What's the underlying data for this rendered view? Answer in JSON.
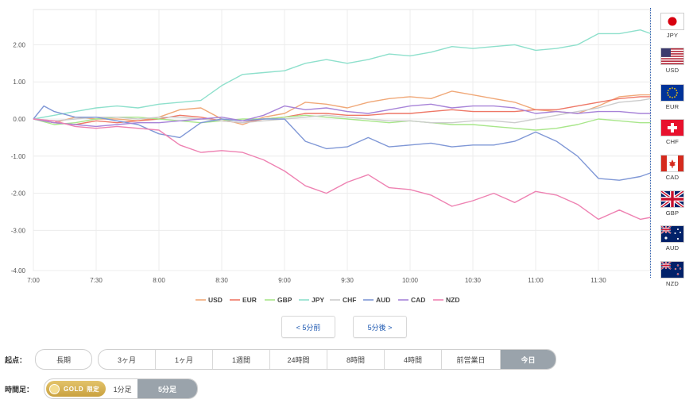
{
  "chart_data": {
    "type": "line",
    "y_ticks": [
      "2.00",
      "1.00",
      "0.00",
      "-1.00",
      "-2.00",
      "-3.00",
      "-4.00"
    ],
    "ylim": [
      -4.2,
      3.0
    ],
    "x_ticks": [
      "7:00",
      "7:30",
      "8:00",
      "8:30",
      "9:00",
      "9:30",
      "10:00",
      "10:30",
      "11:00",
      "11:30"
    ],
    "x_range_minutes": [
      0,
      295
    ],
    "grid": true,
    "legend_position": "bottom",
    "series": [
      {
        "name": "USD",
        "color": "#f0a878",
        "x": [
          0,
          10,
          20,
          30,
          40,
          50,
          60,
          70,
          80,
          90,
          100,
          110,
          120,
          130,
          140,
          150,
          160,
          170,
          180,
          190,
          200,
          210,
          220,
          230,
          240,
          250,
          260,
          270,
          280,
          290,
          295
        ],
        "values": [
          0.0,
          -0.1,
          0.05,
          0.0,
          0.0,
          -0.05,
          0.05,
          0.25,
          0.3,
          0.0,
          -0.15,
          0.05,
          0.15,
          0.45,
          0.4,
          0.3,
          0.45,
          0.55,
          0.6,
          0.55,
          0.75,
          0.65,
          0.55,
          0.45,
          0.25,
          0.2,
          0.15,
          0.35,
          0.6,
          0.65,
          0.65
        ]
      },
      {
        "name": "EUR",
        "color": "#ee7766",
        "x": [
          0,
          10,
          20,
          30,
          40,
          50,
          60,
          70,
          80,
          90,
          100,
          110,
          120,
          130,
          140,
          150,
          160,
          170,
          180,
          190,
          200,
          210,
          220,
          230,
          240,
          250,
          260,
          270,
          280,
          290,
          295
        ],
        "values": [
          0.0,
          -0.1,
          -0.15,
          -0.05,
          -0.1,
          -0.05,
          0.0,
          0.1,
          0.05,
          -0.05,
          -0.1,
          0.0,
          0.05,
          0.15,
          0.15,
          0.1,
          0.1,
          0.15,
          0.15,
          0.2,
          0.25,
          0.2,
          0.2,
          0.2,
          0.25,
          0.25,
          0.35,
          0.45,
          0.55,
          0.6,
          0.6
        ]
      },
      {
        "name": "GBP",
        "color": "#a8e68a",
        "x": [
          0,
          10,
          20,
          30,
          40,
          50,
          60,
          70,
          80,
          90,
          100,
          110,
          120,
          130,
          140,
          150,
          160,
          170,
          180,
          190,
          200,
          210,
          220,
          230,
          240,
          250,
          260,
          270,
          280,
          290,
          295
        ],
        "values": [
          0.0,
          -0.15,
          -0.1,
          0.0,
          0.05,
          0.05,
          0.0,
          -0.05,
          -0.1,
          -0.05,
          0.0,
          0.0,
          0.05,
          0.1,
          0.05,
          0.0,
          -0.05,
          -0.1,
          -0.05,
          -0.1,
          -0.15,
          -0.15,
          -0.2,
          -0.25,
          -0.3,
          -0.25,
          -0.15,
          0.0,
          -0.05,
          -0.1,
          -0.1
        ]
      },
      {
        "name": "JPY",
        "color": "#8ee0cc",
        "x": [
          0,
          10,
          20,
          30,
          40,
          50,
          60,
          70,
          80,
          90,
          100,
          110,
          120,
          130,
          140,
          150,
          160,
          170,
          180,
          190,
          200,
          210,
          220,
          230,
          240,
          250,
          260,
          270,
          280,
          290,
          295
        ],
        "values": [
          0.0,
          0.1,
          0.2,
          0.3,
          0.35,
          0.3,
          0.4,
          0.45,
          0.5,
          0.9,
          1.2,
          1.25,
          1.3,
          1.5,
          1.6,
          1.5,
          1.6,
          1.75,
          1.7,
          1.8,
          1.95,
          1.9,
          1.95,
          2.0,
          1.85,
          1.9,
          2.0,
          2.3,
          2.3,
          2.4,
          2.3
        ]
      },
      {
        "name": "CHF",
        "color": "#cccccc",
        "x": [
          0,
          10,
          20,
          30,
          40,
          50,
          60,
          70,
          80,
          90,
          100,
          110,
          120,
          130,
          140,
          150,
          160,
          170,
          180,
          190,
          200,
          210,
          220,
          230,
          240,
          250,
          260,
          270,
          280,
          290,
          295
        ],
        "values": [
          0.0,
          -0.05,
          0.0,
          0.05,
          0.05,
          0.0,
          0.05,
          0.05,
          0.0,
          -0.05,
          -0.1,
          -0.05,
          0.0,
          0.05,
          0.1,
          0.05,
          0.0,
          -0.05,
          -0.05,
          -0.1,
          -0.1,
          -0.05,
          -0.05,
          -0.1,
          0.0,
          0.1,
          0.2,
          0.3,
          0.45,
          0.5,
          0.55
        ]
      },
      {
        "name": "AUD",
        "color": "#7f97d6",
        "x": [
          0,
          5,
          10,
          20,
          30,
          40,
          50,
          60,
          70,
          80,
          90,
          100,
          110,
          120,
          130,
          140,
          150,
          160,
          170,
          180,
          190,
          200,
          210,
          220,
          230,
          240,
          250,
          260,
          270,
          280,
          290,
          295
        ],
        "values": [
          0.0,
          0.35,
          0.2,
          0.05,
          0.05,
          -0.05,
          -0.15,
          -0.4,
          -0.5,
          -0.1,
          0.0,
          -0.05,
          0.0,
          0.0,
          -0.6,
          -0.8,
          -0.75,
          -0.5,
          -0.75,
          -0.7,
          -0.65,
          -0.75,
          -0.7,
          -0.7,
          -0.6,
          -0.35,
          -0.6,
          -1.0,
          -1.6,
          -1.65,
          -1.55,
          -1.45
        ]
      },
      {
        "name": "CAD",
        "color": "#a783d8",
        "x": [
          0,
          10,
          20,
          30,
          40,
          50,
          60,
          70,
          80,
          90,
          100,
          110,
          120,
          130,
          140,
          150,
          160,
          170,
          180,
          190,
          200,
          210,
          220,
          230,
          240,
          250,
          260,
          270,
          280,
          290,
          295
        ],
        "values": [
          0.0,
          -0.1,
          -0.15,
          -0.2,
          -0.15,
          -0.1,
          -0.1,
          -0.05,
          0.0,
          0.05,
          -0.05,
          0.1,
          0.35,
          0.25,
          0.3,
          0.2,
          0.15,
          0.25,
          0.35,
          0.4,
          0.3,
          0.35,
          0.35,
          0.3,
          0.15,
          0.2,
          0.15,
          0.2,
          0.2,
          0.15,
          0.15
        ]
      },
      {
        "name": "NZD",
        "color": "#ee82b2",
        "x": [
          0,
          10,
          20,
          30,
          40,
          50,
          60,
          70,
          80,
          90,
          100,
          110,
          120,
          130,
          140,
          150,
          160,
          170,
          180,
          190,
          200,
          210,
          220,
          230,
          240,
          250,
          260,
          270,
          280,
          290,
          295
        ],
        "values": [
          0.0,
          -0.05,
          -0.2,
          -0.25,
          -0.2,
          -0.25,
          -0.3,
          -0.7,
          -0.9,
          -0.85,
          -0.9,
          -1.1,
          -1.4,
          -1.8,
          -2.0,
          -1.7,
          -1.5,
          -1.85,
          -1.9,
          -2.05,
          -2.35,
          -2.2,
          -2.0,
          -2.25,
          -1.95,
          -2.05,
          -2.3,
          -2.7,
          -2.45,
          -2.7,
          -2.65
        ]
      }
    ]
  },
  "currencies": [
    {
      "code": "JPY"
    },
    {
      "code": "USD"
    },
    {
      "code": "EUR"
    },
    {
      "code": "CHF"
    },
    {
      "code": "CAD"
    },
    {
      "code": "GBP"
    },
    {
      "code": "AUD"
    },
    {
      "code": "NZD"
    }
  ],
  "nav": {
    "prev": "< 5分前",
    "next": "5分後 >"
  },
  "start": {
    "label": "起点：",
    "long": "長期",
    "options": [
      "3ヶ月",
      "1ヶ月",
      "1週間",
      "24時間",
      "8時間",
      "4時間",
      "前営業日",
      "今日"
    ],
    "active": "今日"
  },
  "timeframe": {
    "label": "時間足：",
    "gold": "GOLD",
    "gold_limited": "限定",
    "options": [
      "1分足",
      "5分足"
    ],
    "active": "5分足"
  }
}
